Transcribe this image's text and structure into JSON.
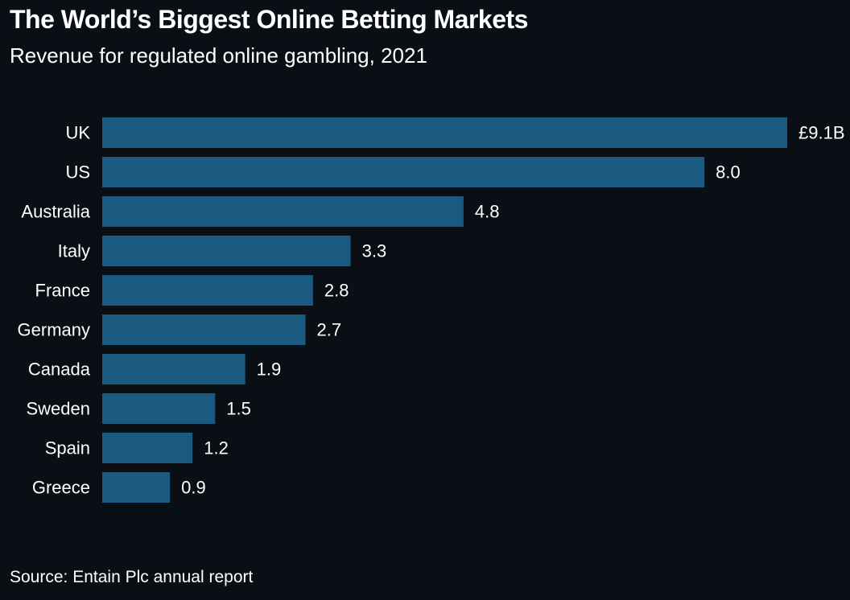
{
  "chart_data": {
    "type": "bar",
    "orientation": "horizontal",
    "title": "The World’s Biggest Online Betting Markets",
    "subtitle": "Revenue for regulated online gambling, 2021",
    "source": "Source: Entain Plc annual report",
    "categories": [
      "UK",
      "US",
      "Australia",
      "Italy",
      "France",
      "Germany",
      "Canada",
      "Sweden",
      "Spain",
      "Greece"
    ],
    "values": [
      9.1,
      8.0,
      4.8,
      3.3,
      2.8,
      2.7,
      1.9,
      1.5,
      1.2,
      0.9
    ],
    "value_labels": [
      "£9.1B",
      "8.0",
      "4.8",
      "3.3",
      "2.8",
      "2.7",
      "1.9",
      "1.5",
      "1.2",
      "0.9"
    ],
    "unit": "£ billions",
    "xlim": [
      0,
      9.1
    ],
    "grid": false,
    "bar_color": "#1b5a80",
    "background_color": "#0a0f16",
    "text_color": "#ffffff"
  }
}
